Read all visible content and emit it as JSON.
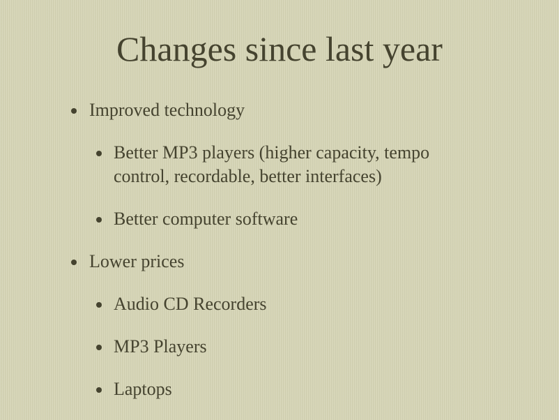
{
  "slide": {
    "title": "Changes since last year",
    "bullets": [
      {
        "text": "Improved technology",
        "children": [
          {
            "text": "Better MP3 players (higher capacity, tempo control, recordable, better interfaces)"
          },
          {
            "text": "Better computer software"
          }
        ]
      },
      {
        "text": "Lower prices",
        "children": [
          {
            "text": "Audio CD Recorders"
          },
          {
            "text": "MP3 Players"
          },
          {
            "text": "Laptops"
          }
        ]
      }
    ]
  },
  "colors": {
    "background": "#d5d4b5",
    "text": "#45432f"
  }
}
